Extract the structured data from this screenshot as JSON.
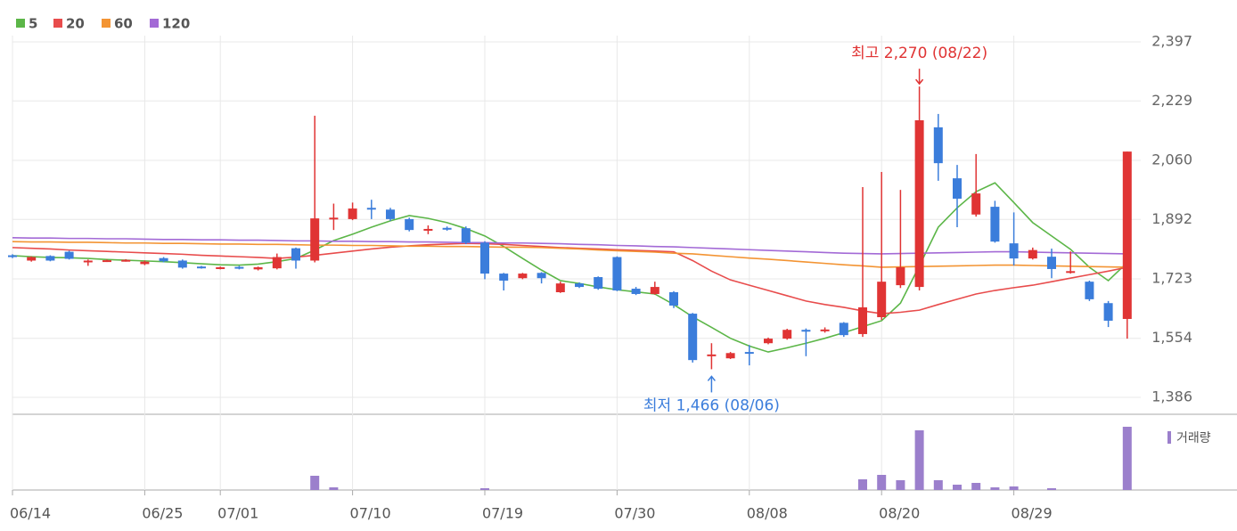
{
  "chart_data": {
    "type": "candlestick",
    "categories": [
      "06/14",
      null,
      null,
      null,
      null,
      null,
      null,
      "06/25",
      null,
      null,
      null,
      "07/01",
      null,
      null,
      null,
      null,
      null,
      null,
      "07/10",
      null,
      null,
      null,
      null,
      null,
      null,
      "07/19",
      null,
      null,
      null,
      null,
      null,
      null,
      "07/30",
      null,
      null,
      null,
      null,
      null,
      null,
      "08/08",
      null,
      null,
      null,
      null,
      null,
      null,
      "08/20",
      null,
      null,
      null,
      null,
      null,
      null,
      "08/29",
      null,
      null,
      null,
      null,
      null,
      null
    ],
    "open": [
      1790,
      1775,
      1788,
      1800,
      1770,
      1773,
      1774,
      1765,
      1782,
      1775,
      1758,
      1753,
      1757,
      1750,
      1753,
      1810,
      1775,
      1893,
      1893,
      1925,
      1920,
      1893,
      1862,
      1868,
      1867,
      1826,
      1738,
      1725,
      1740,
      1685,
      1710,
      1728,
      1785,
      1695,
      1680,
      1685,
      1624,
      1505,
      1497,
      1515,
      1540,
      1553,
      1578,
      1576,
      1598,
      1566,
      1614,
      1705,
      1700,
      2154,
      2009,
      1906,
      1928,
      1824,
      1781,
      1786,
      1742,
      1715,
      1654,
      1609
    ],
    "close": [
      1785,
      1785,
      1775,
      1780,
      1775,
      1776,
      1777,
      1772,
      1773,
      1755,
      1755,
      1756,
      1753,
      1756,
      1785,
      1775,
      1895,
      1897,
      1923,
      1922,
      1893,
      1862,
      1865,
      1863,
      1826,
      1738,
      1718,
      1738,
      1725,
      1710,
      1700,
      1695,
      1690,
      1680,
      1700,
      1647,
      1492,
      1508,
      1512,
      1512,
      1553,
      1578,
      1573,
      1579,
      1563,
      1642,
      1715,
      1756,
      2174,
      2052,
      1951,
      1966,
      1829,
      1781,
      1805,
      1751,
      1745,
      1665,
      1604,
      2085
    ],
    "high": [
      1793,
      1787,
      1790,
      1803,
      1778,
      1778,
      1779,
      1775,
      1785,
      1778,
      1760,
      1758,
      1760,
      1758,
      1795,
      1812,
      2187,
      1937,
      1940,
      1948,
      1925,
      1897,
      1875,
      1872,
      1872,
      1830,
      1740,
      1740,
      1742,
      1715,
      1713,
      1730,
      1787,
      1700,
      1715,
      1688,
      1626,
      1540,
      1515,
      1535,
      1556,
      1581,
      1582,
      1585,
      1600,
      1984,
      2027,
      1976,
      2270,
      2192,
      2047,
      2078,
      1945,
      1912,
      1812,
      1809,
      1801,
      1718,
      1660,
      2085
    ],
    "low": [
      1782,
      1772,
      1773,
      1778,
      1760,
      1771,
      1772,
      1762,
      1770,
      1752,
      1752,
      1750,
      1750,
      1747,
      1750,
      1752,
      1770,
      1862,
      1890,
      1893,
      1888,
      1858,
      1850,
      1860,
      1822,
      1722,
      1690,
      1722,
      1710,
      1683,
      1697,
      1692,
      1688,
      1677,
      1678,
      1640,
      1485,
      1466,
      1495,
      1477,
      1537,
      1550,
      1503,
      1570,
      1558,
      1558,
      1606,
      1697,
      1690,
      2002,
      1870,
      1900,
      1826,
      1761,
      1778,
      1725,
      1738,
      1660,
      1586,
      1553
    ],
    "up_color": "#e03434",
    "down_color": "#3b7ddb",
    "ylim": [
      1386,
      2397
    ],
    "yticks": [
      {
        "value": 2397,
        "label": "2,397"
      },
      {
        "value": 2229,
        "label": "2,229"
      },
      {
        "value": 2060,
        "label": "2,060"
      },
      {
        "value": 1892,
        "label": "1,892"
      },
      {
        "value": 1723,
        "label": "1,723"
      },
      {
        "value": 1554,
        "label": "1,554"
      },
      {
        "value": 1386,
        "label": "1,386"
      }
    ],
    "grid": true,
    "series": [
      {
        "name": "5",
        "color": "#5cb648",
        "values": [
          1789,
          1786,
          1784,
          1783,
          1781,
          1778,
          1776,
          1774,
          1772,
          1769,
          1766,
          1763,
          1762,
          1765,
          1772,
          1781,
          1805,
          1832,
          1850,
          1870,
          1888,
          1903,
          1895,
          1883,
          1866,
          1845,
          1815,
          1781,
          1748,
          1718,
          1710,
          1700,
          1692,
          1686,
          1680,
          1650,
          1615,
          1585,
          1554,
          1532,
          1515,
          1527,
          1540,
          1554,
          1570,
          1587,
          1604,
          1654,
          1760,
          1870,
          1925,
          1971,
          1996,
          1940,
          1883,
          1845,
          1807,
          1756,
          1718,
          1769
        ]
      },
      {
        "name": "20",
        "color": "#e84c4c",
        "values": [
          1812,
          1810,
          1808,
          1805,
          1803,
          1801,
          1799,
          1797,
          1795,
          1793,
          1790,
          1788,
          1786,
          1784,
          1781,
          1785,
          1790,
          1796,
          1802,
          1808,
          1813,
          1817,
          1820,
          1822,
          1824,
          1823,
          1821,
          1818,
          1815,
          1812,
          1810,
          1808,
          1806,
          1804,
          1802,
          1800,
          1775,
          1745,
          1720,
          1705,
          1690,
          1675,
          1660,
          1650,
          1642,
          1632,
          1624,
          1628,
          1634,
          1650,
          1665,
          1680,
          1690,
          1698,
          1705,
          1715,
          1725,
          1735,
          1745,
          1756
        ]
      },
      {
        "name": "60",
        "color": "#f39433",
        "values": [
          1829,
          1828,
          1828,
          1827,
          1827,
          1826,
          1825,
          1825,
          1824,
          1824,
          1823,
          1822,
          1822,
          1821,
          1821,
          1820,
          1819,
          1819,
          1818,
          1818,
          1817,
          1816,
          1816,
          1815,
          1815,
          1814,
          1813,
          1813,
          1812,
          1810,
          1808,
          1805,
          1803,
          1801,
          1799,
          1796,
          1794,
          1790,
          1786,
          1782,
          1779,
          1775,
          1771,
          1767,
          1763,
          1760,
          1756,
          1757,
          1758,
          1759,
          1760,
          1761,
          1762,
          1762,
          1761,
          1760,
          1759,
          1758,
          1757,
          1756
        ]
      },
      {
        "name": "120",
        "color": "#a36ad6",
        "values": [
          1840,
          1839,
          1839,
          1838,
          1838,
          1837,
          1837,
          1836,
          1835,
          1835,
          1834,
          1834,
          1833,
          1833,
          1832,
          1831,
          1831,
          1830,
          1830,
          1829,
          1829,
          1828,
          1828,
          1827,
          1826,
          1826,
          1825,
          1825,
          1824,
          1823,
          1821,
          1820,
          1818,
          1817,
          1815,
          1814,
          1812,
          1810,
          1808,
          1806,
          1804,
          1802,
          1800,
          1798,
          1796,
          1795,
          1794,
          1795,
          1796,
          1797,
          1798,
          1799,
          1800,
          1800,
          1799,
          1798,
          1797,
          1796,
          1795,
          1794
        ]
      }
    ],
    "volume": {
      "name": "거래량",
      "color": "#9b7fcc",
      "ylim": [
        0,
        75
      ],
      "values": [
        0,
        0,
        0,
        0,
        0,
        0,
        0,
        0,
        0,
        0,
        0,
        0,
        0,
        0,
        0,
        0,
        16,
        3,
        0,
        0,
        0,
        0,
        0,
        0,
        0,
        2,
        0,
        0,
        0,
        0,
        0,
        0,
        0,
        0,
        0,
        0,
        0,
        0,
        0,
        0,
        0,
        0,
        0,
        0,
        0,
        12,
        17,
        11,
        67,
        11,
        6,
        8,
        3,
        4,
        0,
        2,
        0,
        0,
        0,
        71
      ]
    },
    "annotations": [
      {
        "text": "최고 2,270 (08/22)",
        "value": 2270,
        "color": "#e03434"
      },
      {
        "text": "최저 1,466 (08/06)",
        "value": 1466,
        "color": "#3b7ddb"
      }
    ]
  }
}
